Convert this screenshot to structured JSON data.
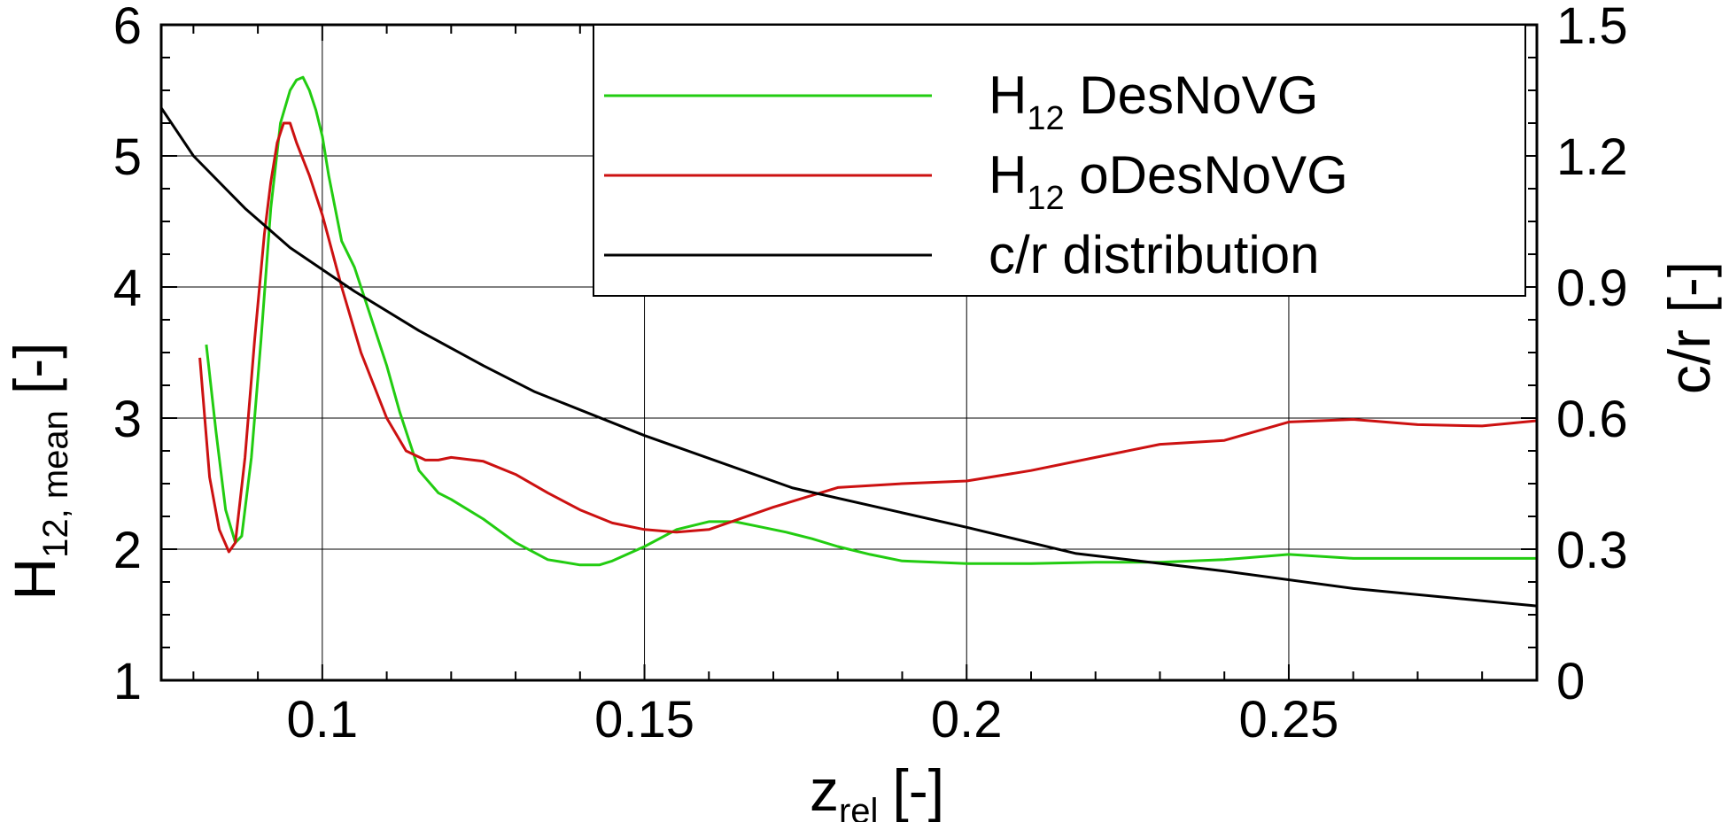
{
  "chart_data": {
    "type": "line",
    "xlabel": "z",
    "xlabel_sub": "rel",
    "xlabel_unit": "[-]",
    "ylabel": "H",
    "ylabel_sub": "12, mean",
    "ylabel_unit": "[-]",
    "y2label": "c/r [-]",
    "xlim": [
      0.075,
      0.2885
    ],
    "ylim": [
      1,
      6
    ],
    "y2lim": [
      0,
      1.5
    ],
    "x_ticks": [
      0.1,
      0.15,
      0.2,
      0.25
    ],
    "x_tick_labels": [
      "0.1",
      "0.15",
      "0.2",
      "0.25"
    ],
    "y_ticks": [
      1,
      2,
      3,
      4,
      5,
      6
    ],
    "y_tick_labels": [
      "1",
      "2",
      "3",
      "4",
      "5",
      "6"
    ],
    "y2_ticks": [
      0,
      0.3,
      0.6,
      0.9,
      1.2,
      1.5
    ],
    "y2_tick_labels": [
      "0",
      "0.3",
      "0.6",
      "0.9",
      "1.2",
      "1.5"
    ],
    "grid": true,
    "legend_position": "top-right",
    "series": [
      {
        "name": "H",
        "name_sub": "12",
        "name_rest": " DesNoVG",
        "axis": "left",
        "color": "#22cc11",
        "x": [
          0.082,
          0.0835,
          0.085,
          0.0865,
          0.0875,
          0.089,
          0.0905,
          0.092,
          0.0935,
          0.095,
          0.096,
          0.097,
          0.098,
          0.099,
          0.1,
          0.101,
          0.103,
          0.105,
          0.107,
          0.11,
          0.112,
          0.115,
          0.118,
          0.12,
          0.125,
          0.13,
          0.135,
          0.14,
          0.143,
          0.145,
          0.15,
          0.155,
          0.16,
          0.164,
          0.168,
          0.172,
          0.176,
          0.18,
          0.185,
          0.19,
          0.195,
          0.2,
          0.21,
          0.22,
          0.23,
          0.24,
          0.25,
          0.26,
          0.27,
          0.28,
          0.2885
        ],
        "y": [
          3.56,
          2.9,
          2.3,
          2.05,
          2.1,
          2.7,
          3.6,
          4.6,
          5.25,
          5.5,
          5.58,
          5.6,
          5.5,
          5.35,
          5.15,
          4.85,
          4.35,
          4.15,
          3.85,
          3.4,
          3.05,
          2.6,
          2.43,
          2.38,
          2.23,
          2.05,
          1.92,
          1.88,
          1.88,
          1.91,
          2.02,
          2.15,
          2.21,
          2.21,
          2.17,
          2.13,
          2.08,
          2.02,
          1.96,
          1.91,
          1.9,
          1.89,
          1.89,
          1.9,
          1.9,
          1.92,
          1.96,
          1.93,
          1.93,
          1.93,
          1.93
        ]
      },
      {
        "name": "H",
        "name_sub": "12",
        "name_rest": " oDesNoVG",
        "axis": "left",
        "color": "#cc1111",
        "x": [
          0.081,
          0.0825,
          0.084,
          0.0855,
          0.0865,
          0.088,
          0.0895,
          0.091,
          0.092,
          0.093,
          0.094,
          0.095,
          0.096,
          0.098,
          0.1,
          0.103,
          0.106,
          0.11,
          0.113,
          0.116,
          0.118,
          0.12,
          0.125,
          0.13,
          0.135,
          0.14,
          0.145,
          0.15,
          0.155,
          0.16,
          0.17,
          0.18,
          0.19,
          0.2,
          0.21,
          0.22,
          0.23,
          0.24,
          0.25,
          0.26,
          0.27,
          0.28,
          0.2885
        ],
        "y": [
          3.46,
          2.55,
          2.15,
          1.98,
          2.05,
          2.7,
          3.6,
          4.4,
          4.8,
          5.1,
          5.25,
          5.25,
          5.1,
          4.85,
          4.55,
          4.0,
          3.5,
          3.0,
          2.75,
          2.68,
          2.68,
          2.7,
          2.67,
          2.57,
          2.43,
          2.3,
          2.2,
          2.15,
          2.13,
          2.15,
          2.32,
          2.47,
          2.5,
          2.52,
          2.6,
          2.7,
          2.8,
          2.83,
          2.97,
          2.99,
          2.95,
          2.94,
          2.98
        ]
      },
      {
        "name": "c/r distribution",
        "axis": "right",
        "color": "#000000",
        "x": [
          0.075,
          0.08,
          0.088,
          0.095,
          0.105,
          0.115,
          0.125,
          0.133,
          0.15,
          0.173,
          0.2,
          0.217,
          0.24,
          0.26,
          0.2885
        ],
        "y": [
          1.31,
          1.2,
          1.08,
          0.99,
          0.89,
          0.8,
          0.72,
          0.66,
          0.56,
          0.44,
          0.35,
          0.29,
          0.25,
          0.21,
          0.17
        ]
      }
    ]
  }
}
